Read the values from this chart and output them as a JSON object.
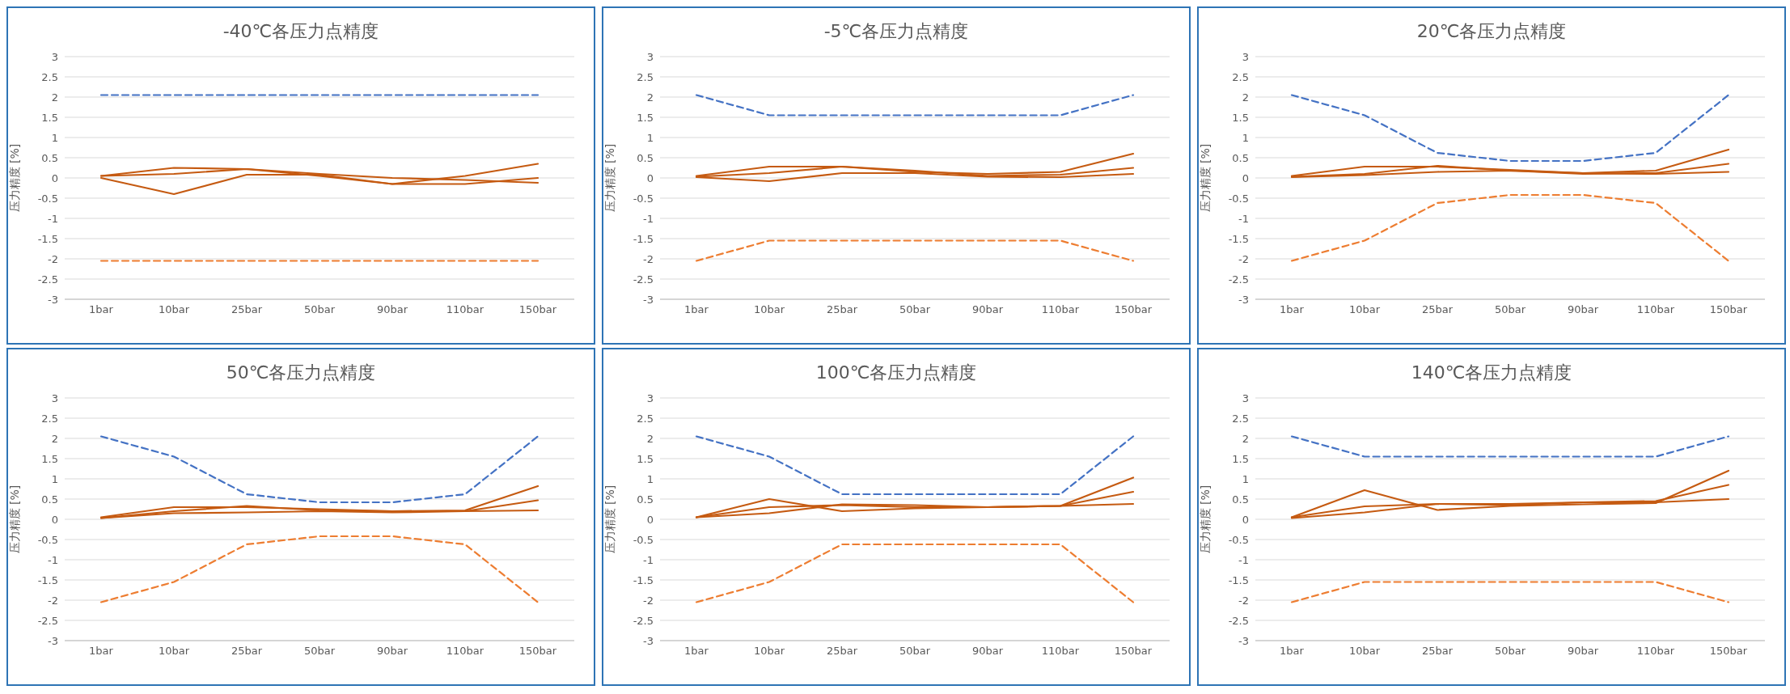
{
  "chart_data": [
    {
      "type": "line",
      "title": "-40℃各压力点精度",
      "ylabel": "压力精度 [%]",
      "categories": [
        "1bar",
        "10bar",
        "25bar",
        "50bar",
        "90bar",
        "110bar",
        "150bar"
      ],
      "ylim": [
        -3,
        3
      ],
      "yticks": [
        -3,
        -2.5,
        -2,
        -1.5,
        -1,
        -0.5,
        0,
        0.5,
        1,
        1.5,
        2,
        2.5,
        3
      ],
      "grid": "y",
      "marker": "none",
      "series": [
        {
          "color": "#4472c4",
          "line_style": "dashed",
          "values": [
            2.05,
            2.05,
            2.05,
            2.05,
            2.05,
            2.05,
            2.05
          ]
        },
        {
          "color": "#ed7d31",
          "line_style": "dashed",
          "values": [
            -2.05,
            -2.05,
            -2.05,
            -2.05,
            -2.05,
            -2.05,
            -2.05
          ]
        },
        {
          "color": "#c55a11",
          "line_style": "solid",
          "values": [
            0.05,
            0.25,
            0.22,
            0.05,
            -0.15,
            0.05,
            0.35
          ]
        },
        {
          "color": "#c55a11",
          "line_style": "solid",
          "values": [
            0.05,
            0.1,
            0.22,
            0.1,
            0.0,
            -0.05,
            -0.12
          ]
        },
        {
          "color": "#c55a11",
          "line_style": "solid",
          "values": [
            0.0,
            -0.4,
            0.08,
            0.08,
            -0.15,
            -0.15,
            0.0
          ]
        }
      ]
    },
    {
      "type": "line",
      "title": "-5℃各压力点精度",
      "ylabel": "压力精度 [%]",
      "categories": [
        "1bar",
        "10bar",
        "25bar",
        "50bar",
        "90bar",
        "110bar",
        "150bar"
      ],
      "ylim": [
        -3,
        3
      ],
      "yticks": [
        -3,
        -2.5,
        -2,
        -1.5,
        -1,
        -0.5,
        0,
        0.5,
        1,
        1.5,
        2,
        2.5,
        3
      ],
      "grid": "y",
      "marker": "none",
      "series": [
        {
          "color": "#4472c4",
          "line_style": "dashed",
          "values": [
            2.05,
            1.55,
            1.55,
            1.55,
            1.55,
            1.55,
            2.05
          ]
        },
        {
          "color": "#ed7d31",
          "line_style": "dashed",
          "values": [
            -2.05,
            -1.55,
            -1.55,
            -1.55,
            -1.55,
            -1.55,
            -2.05
          ]
        },
        {
          "color": "#c55a11",
          "line_style": "solid",
          "values": [
            0.05,
            0.28,
            0.28,
            0.15,
            0.1,
            0.15,
            0.6
          ]
        },
        {
          "color": "#c55a11",
          "line_style": "solid",
          "values": [
            0.03,
            0.12,
            0.28,
            0.18,
            0.05,
            0.08,
            0.25
          ]
        },
        {
          "color": "#c55a11",
          "line_style": "solid",
          "values": [
            0.02,
            -0.08,
            0.12,
            0.12,
            0.03,
            0.02,
            0.1
          ]
        }
      ]
    },
    {
      "type": "line",
      "title": "20℃各压力点精度",
      "ylabel": "压力精度 [%]",
      "categories": [
        "1bar",
        "10bar",
        "25bar",
        "50bar",
        "90bar",
        "110bar",
        "150bar"
      ],
      "ylim": [
        -3,
        3
      ],
      "yticks": [
        -3,
        -2.5,
        -2,
        -1.5,
        -1,
        -0.5,
        0,
        0.5,
        1,
        1.5,
        2,
        2.5,
        3
      ],
      "grid": "y",
      "marker": "none",
      "series": [
        {
          "color": "#4472c4",
          "line_style": "dashed",
          "values": [
            2.05,
            1.55,
            0.62,
            0.42,
            0.42,
            0.62,
            2.05
          ]
        },
        {
          "color": "#ed7d31",
          "line_style": "dashed",
          "values": [
            -2.05,
            -1.55,
            -0.62,
            -0.42,
            -0.42,
            -0.62,
            -2.05
          ]
        },
        {
          "color": "#c55a11",
          "line_style": "solid",
          "values": [
            0.05,
            0.28,
            0.28,
            0.2,
            0.12,
            0.18,
            0.7
          ]
        },
        {
          "color": "#c55a11",
          "line_style": "solid",
          "values": [
            0.03,
            0.1,
            0.3,
            0.18,
            0.1,
            0.12,
            0.35
          ]
        },
        {
          "color": "#c55a11",
          "line_style": "solid",
          "values": [
            0.02,
            0.07,
            0.15,
            0.18,
            0.12,
            0.1,
            0.15
          ]
        }
      ]
    },
    {
      "type": "line",
      "title": "50℃各压力点精度",
      "ylabel": "压力精度 [%]",
      "categories": [
        "1bar",
        "10bar",
        "25bar",
        "50bar",
        "90bar",
        "110bar",
        "150bar"
      ],
      "ylim": [
        -3,
        3
      ],
      "yticks": [
        -3,
        -2.5,
        -2,
        -1.5,
        -1,
        -0.5,
        0,
        0.5,
        1,
        1.5,
        2,
        2.5,
        3
      ],
      "grid": "y",
      "marker": "none",
      "series": [
        {
          "color": "#4472c4",
          "line_style": "dashed",
          "values": [
            2.05,
            1.55,
            0.62,
            0.42,
            0.42,
            0.62,
            2.05
          ]
        },
        {
          "color": "#ed7d31",
          "line_style": "dashed",
          "values": [
            -2.05,
            -1.55,
            -0.62,
            -0.42,
            -0.42,
            -0.62,
            -2.05
          ]
        },
        {
          "color": "#c55a11",
          "line_style": "solid",
          "values": [
            0.05,
            0.3,
            0.3,
            0.25,
            0.2,
            0.22,
            0.82
          ]
        },
        {
          "color": "#c55a11",
          "line_style": "solid",
          "values": [
            0.03,
            0.2,
            0.33,
            0.22,
            0.2,
            0.2,
            0.47
          ]
        },
        {
          "color": "#c55a11",
          "line_style": "solid",
          "values": [
            0.03,
            0.15,
            0.17,
            0.2,
            0.17,
            0.2,
            0.22
          ]
        }
      ]
    },
    {
      "type": "line",
      "title": "100℃各压力点精度",
      "ylabel": "压力精度 [%]",
      "categories": [
        "1bar",
        "10bar",
        "25bar",
        "50bar",
        "90bar",
        "110bar",
        "150bar"
      ],
      "ylim": [
        -3,
        3
      ],
      "yticks": [
        -3,
        -2.5,
        -2,
        -1.5,
        -1,
        -0.5,
        0,
        0.5,
        1,
        1.5,
        2,
        2.5,
        3
      ],
      "grid": "y",
      "marker": "none",
      "series": [
        {
          "color": "#4472c4",
          "line_style": "dashed",
          "values": [
            2.05,
            1.55,
            0.62,
            0.62,
            0.62,
            0.62,
            2.05
          ]
        },
        {
          "color": "#ed7d31",
          "line_style": "dashed",
          "values": [
            -2.05,
            -1.55,
            -0.62,
            -0.62,
            -0.62,
            -0.62,
            -2.05
          ]
        },
        {
          "color": "#c55a11",
          "line_style": "solid",
          "values": [
            0.05,
            0.5,
            0.2,
            0.27,
            0.3,
            0.33,
            1.03
          ]
        },
        {
          "color": "#c55a11",
          "line_style": "solid",
          "values": [
            0.05,
            0.3,
            0.35,
            0.3,
            0.3,
            0.33,
            0.68
          ]
        },
        {
          "color": "#c55a11",
          "line_style": "solid",
          "values": [
            0.05,
            0.15,
            0.37,
            0.35,
            0.3,
            0.33,
            0.38
          ]
        }
      ]
    },
    {
      "type": "line",
      "title": "140℃各压力点精度",
      "ylabel": "压力精度 [%]",
      "categories": [
        "1bar",
        "10bar",
        "25bar",
        "50bar",
        "90bar",
        "110bar",
        "150bar"
      ],
      "ylim": [
        -3,
        3
      ],
      "yticks": [
        -3,
        -2.5,
        -2,
        -1.5,
        -1,
        -0.5,
        0,
        0.5,
        1,
        1.5,
        2,
        2.5,
        3
      ],
      "grid": "y",
      "marker": "none",
      "series": [
        {
          "color": "#4472c4",
          "line_style": "dashed",
          "values": [
            2.05,
            1.55,
            1.55,
            1.55,
            1.55,
            1.55,
            2.05
          ]
        },
        {
          "color": "#ed7d31",
          "line_style": "dashed",
          "values": [
            -2.05,
            -1.55,
            -1.55,
            -1.55,
            -1.55,
            -1.55,
            -2.05
          ]
        },
        {
          "color": "#c55a11",
          "line_style": "solid",
          "values": [
            0.05,
            0.72,
            0.23,
            0.33,
            0.37,
            0.4,
            1.2
          ]
        },
        {
          "color": "#c55a11",
          "line_style": "solid",
          "values": [
            0.05,
            0.32,
            0.38,
            0.38,
            0.42,
            0.45,
            0.85
          ]
        },
        {
          "color": "#c55a11",
          "line_style": "solid",
          "values": [
            0.03,
            0.17,
            0.38,
            0.35,
            0.42,
            0.42,
            0.5
          ]
        }
      ]
    }
  ]
}
